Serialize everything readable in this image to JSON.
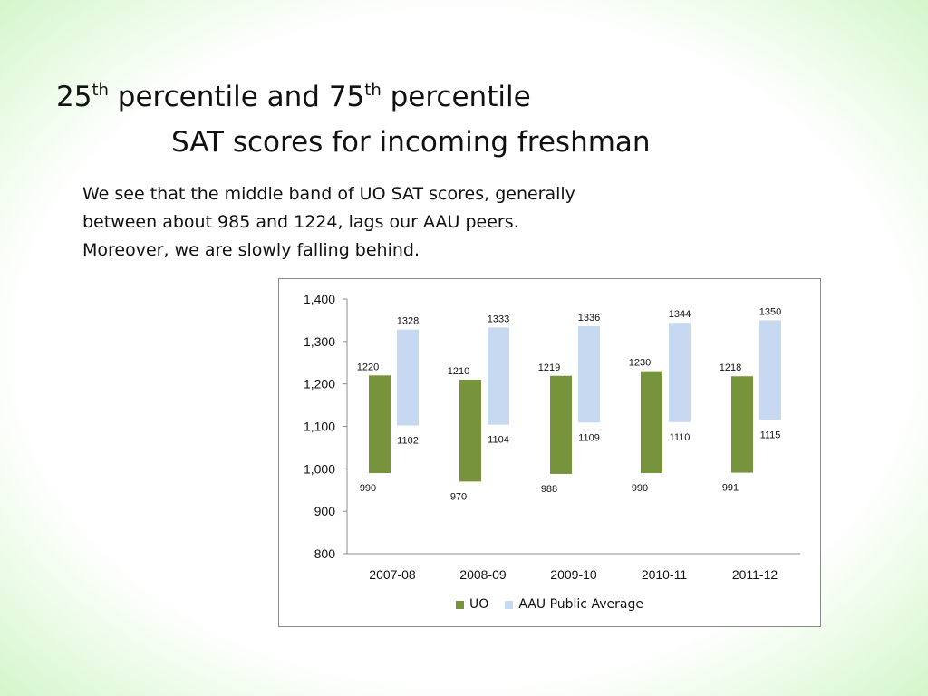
{
  "slide": {
    "title_line1_part1": "25",
    "title_sup1": "th",
    "title_line1_part2": " percentile and 75",
    "title_sup2": "th",
    "title_line1_part3": " percentile",
    "title_line2": "SAT scores for incoming freshman",
    "body_lines": [
      "We see that the middle band of UO SAT scores, generally",
      "between about 985 and 1224, lags our AAU peers.",
      "Moreover, we are slowly falling behind."
    ]
  },
  "colors": {
    "uo": "#77933c",
    "aau": "#c6d9f1",
    "axis": "#8c8c8c"
  },
  "chart_data": {
    "type": "bar",
    "subtype": "floating-range",
    "categories": [
      "2007-08",
      "2008-09",
      "2009-10",
      "2010-11",
      "2011-12"
    ],
    "series": [
      {
        "name": "UO",
        "low": [
          990,
          970,
          988,
          990,
          991
        ],
        "high": [
          1220,
          1210,
          1219,
          1230,
          1218
        ]
      },
      {
        "name": "AAU Public Average",
        "low": [
          1102,
          1104,
          1109,
          1110,
          1115
        ],
        "high": [
          1328,
          1333,
          1336,
          1344,
          1350
        ]
      }
    ],
    "ylim": [
      800,
      1400
    ],
    "yticks": [
      800,
      900,
      1000,
      1100,
      1200,
      1300,
      1400
    ],
    "ytick_labels": [
      "800",
      "900",
      "1,000",
      "1,100",
      "1,200",
      "1,300",
      "1,400"
    ],
    "grid": false,
    "legend_position": "bottom"
  }
}
